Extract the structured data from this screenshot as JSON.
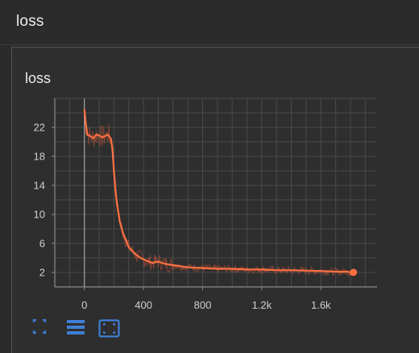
{
  "section": {
    "title": "loss"
  },
  "card": {
    "title": "loss"
  },
  "colors": {
    "background": "#2b2b2b",
    "grid": "#4a4a4a",
    "series": "#ff7043",
    "series_faint": "#c8563a",
    "tick_text": "#cfcfcf",
    "toolbar_icon": "#3f7fd6"
  },
  "toolbar": {
    "icons": [
      "fit-domain-icon",
      "toggle-log-scale-icon",
      "expand-chart-icon"
    ]
  },
  "chart_data": {
    "type": "line",
    "title": "",
    "xlabel": "",
    "ylabel": "",
    "xlim": [
      -200,
      1980
    ],
    "ylim": [
      0,
      26
    ],
    "x_ticks": [
      0,
      400,
      800,
      1200,
      1600
    ],
    "x_tick_labels": [
      "0",
      "400",
      "800",
      "1.2k",
      "1.6k"
    ],
    "y_ticks": [
      2,
      6,
      10,
      14,
      18,
      22
    ],
    "y_tick_labels": [
      "2",
      "6",
      "10",
      "14",
      "18",
      "22"
    ],
    "grid": true,
    "legend": "none",
    "series": [
      {
        "x": [
          0,
          10,
          20,
          40,
          60,
          80,
          100,
          120,
          140,
          160,
          180,
          190,
          200,
          210,
          220,
          240,
          260,
          280,
          300,
          340,
          380,
          420,
          460,
          500,
          540,
          600,
          700,
          800,
          900,
          1000,
          1100,
          1200,
          1300,
          1400,
          1500,
          1600,
          1700,
          1780,
          1800,
          1820
        ],
        "y": [
          24.5,
          22.5,
          21.0,
          20.8,
          20.5,
          21.0,
          20.9,
          20.6,
          20.8,
          21.0,
          20.4,
          19.0,
          16.0,
          13.5,
          11.5,
          9.0,
          7.5,
          6.5,
          5.5,
          4.6,
          4.0,
          3.6,
          3.3,
          3.5,
          3.2,
          3.0,
          2.7,
          2.6,
          2.5,
          2.5,
          2.4,
          2.4,
          2.3,
          2.3,
          2.25,
          2.2,
          2.1,
          2.1,
          2.0,
          2.0
        ]
      }
    ]
  }
}
